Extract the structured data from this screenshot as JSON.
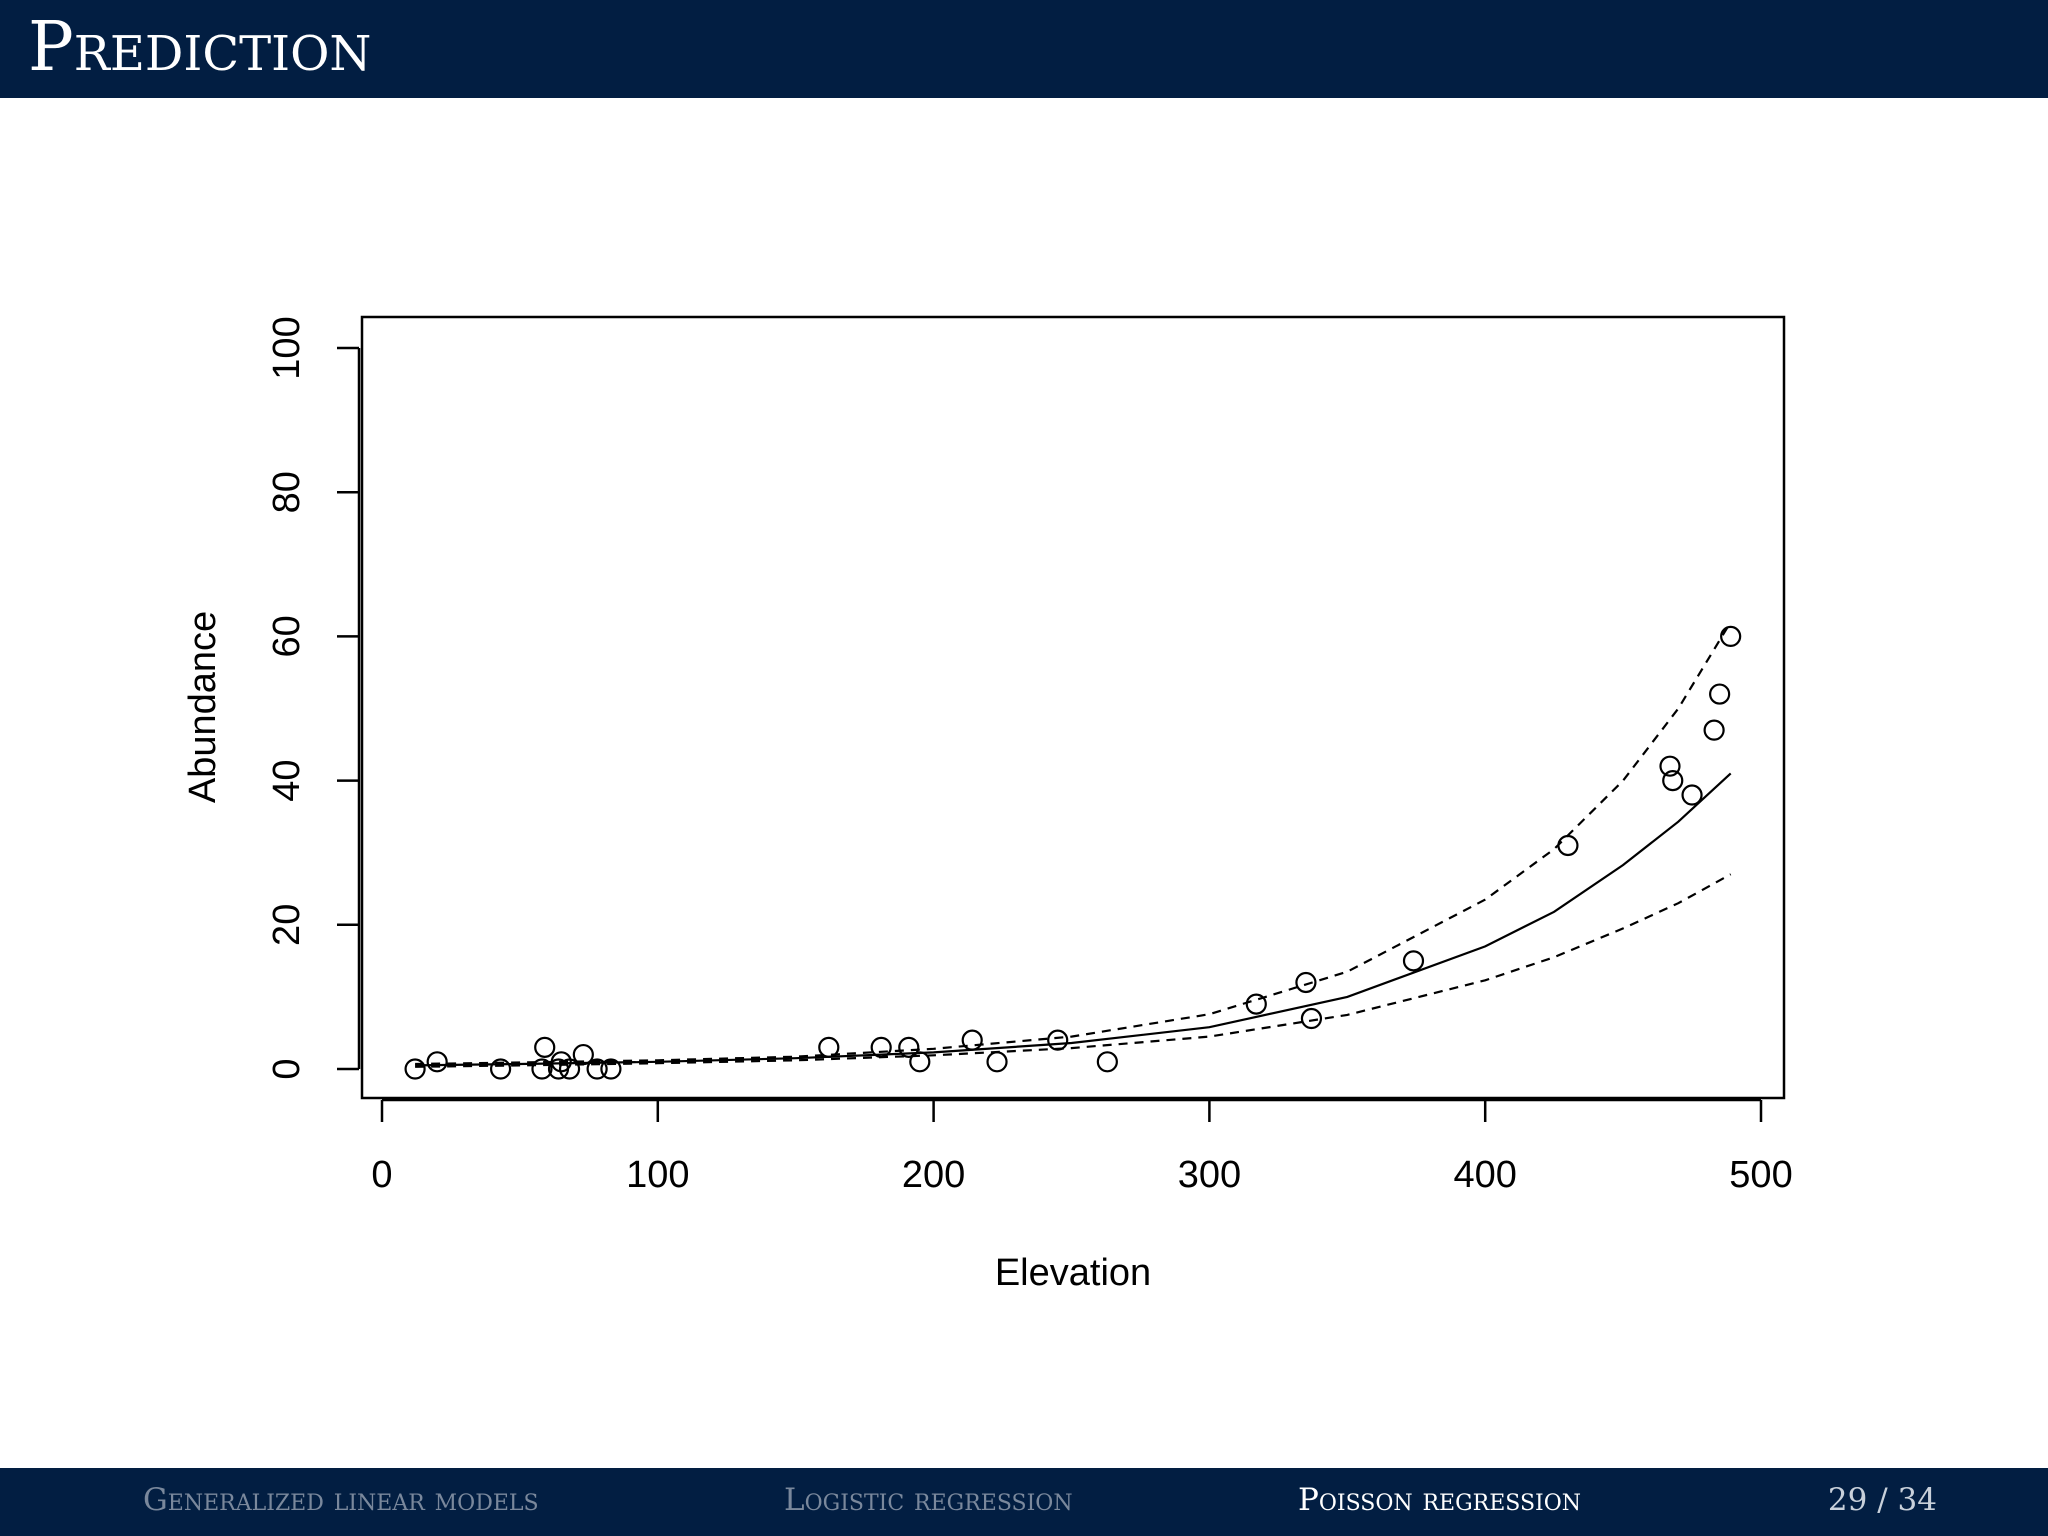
{
  "slide": {
    "title": "Prediction",
    "footer": {
      "sections": [
        {
          "label": "Generalized linear models",
          "active": false
        },
        {
          "label": "Logistic regression",
          "active": false
        },
        {
          "label": "Poisson regression",
          "active": true
        }
      ],
      "page_current": "29",
      "page_separator": "/",
      "page_total": "34"
    }
  },
  "chart_data": {
    "type": "scatter",
    "title": "",
    "xlabel": "Elevation",
    "ylabel": "Abundance",
    "xlim": [
      0,
      500
    ],
    "ylim": [
      0,
      100
    ],
    "x_ticks": [
      0,
      100,
      200,
      300,
      400,
      500
    ],
    "y_ticks": [
      0,
      20,
      40,
      60,
      80,
      100
    ],
    "grid": false,
    "legend": "none",
    "series": [
      {
        "kind": "points",
        "marker": "open-circle",
        "points": [
          {
            "x": 12,
            "y": 0
          },
          {
            "x": 20,
            "y": 1
          },
          {
            "x": 43,
            "y": 0
          },
          {
            "x": 58,
            "y": 0
          },
          {
            "x": 59,
            "y": 3
          },
          {
            "x": 64,
            "y": 0
          },
          {
            "x": 65,
            "y": 1
          },
          {
            "x": 68,
            "y": 0
          },
          {
            "x": 73,
            "y": 2
          },
          {
            "x": 78,
            "y": 0
          },
          {
            "x": 83,
            "y": 0
          },
          {
            "x": 162,
            "y": 3
          },
          {
            "x": 181,
            "y": 3
          },
          {
            "x": 191,
            "y": 3
          },
          {
            "x": 195,
            "y": 1
          },
          {
            "x": 214,
            "y": 4
          },
          {
            "x": 223,
            "y": 1
          },
          {
            "x": 245,
            "y": 4
          },
          {
            "x": 263,
            "y": 1
          },
          {
            "x": 317,
            "y": 9
          },
          {
            "x": 335,
            "y": 12
          },
          {
            "x": 337,
            "y": 7
          },
          {
            "x": 374,
            "y": 15
          },
          {
            "x": 430,
            "y": 31
          },
          {
            "x": 467,
            "y": 42
          },
          {
            "x": 468,
            "y": 40
          },
          {
            "x": 475,
            "y": 38
          },
          {
            "x": 483,
            "y": 47
          },
          {
            "x": 485,
            "y": 52
          },
          {
            "x": 489,
            "y": 60
          }
        ]
      },
      {
        "kind": "fitted-line",
        "style": "solid",
        "points": [
          {
            "x": 12,
            "y": 0.5
          },
          {
            "x": 50,
            "y": 0.7
          },
          {
            "x": 100,
            "y": 1.0
          },
          {
            "x": 150,
            "y": 1.5
          },
          {
            "x": 200,
            "y": 2.3
          },
          {
            "x": 250,
            "y": 3.6
          },
          {
            "x": 300,
            "y": 5.8
          },
          {
            "x": 350,
            "y": 10.0
          },
          {
            "x": 400,
            "y": 17.0
          },
          {
            "x": 425,
            "y": 21.8
          },
          {
            "x": 450,
            "y": 28.3
          },
          {
            "x": 470,
            "y": 34.3
          },
          {
            "x": 489,
            "y": 41.0
          }
        ]
      },
      {
        "kind": "upper-bound",
        "style": "dashed",
        "points": [
          {
            "x": 12,
            "y": 0.7
          },
          {
            "x": 50,
            "y": 0.9
          },
          {
            "x": 100,
            "y": 1.2
          },
          {
            "x": 150,
            "y": 1.7
          },
          {
            "x": 200,
            "y": 2.8
          },
          {
            "x": 250,
            "y": 4.5
          },
          {
            "x": 300,
            "y": 7.6
          },
          {
            "x": 350,
            "y": 13.5
          },
          {
            "x": 400,
            "y": 23.5
          },
          {
            "x": 425,
            "y": 30.5
          },
          {
            "x": 450,
            "y": 40.0
          },
          {
            "x": 470,
            "y": 50.0
          },
          {
            "x": 489,
            "y": 62.0
          }
        ]
      },
      {
        "kind": "lower-bound",
        "style": "dashed",
        "points": [
          {
            "x": 12,
            "y": 0.3
          },
          {
            "x": 50,
            "y": 0.5
          },
          {
            "x": 100,
            "y": 0.8
          },
          {
            "x": 150,
            "y": 1.2
          },
          {
            "x": 200,
            "y": 1.9
          },
          {
            "x": 250,
            "y": 2.9
          },
          {
            "x": 300,
            "y": 4.5
          },
          {
            "x": 350,
            "y": 7.5
          },
          {
            "x": 400,
            "y": 12.3
          },
          {
            "x": 425,
            "y": 15.5
          },
          {
            "x": 450,
            "y": 19.5
          },
          {
            "x": 470,
            "y": 23.0
          },
          {
            "x": 489,
            "y": 27.0
          }
        ]
      }
    ]
  }
}
